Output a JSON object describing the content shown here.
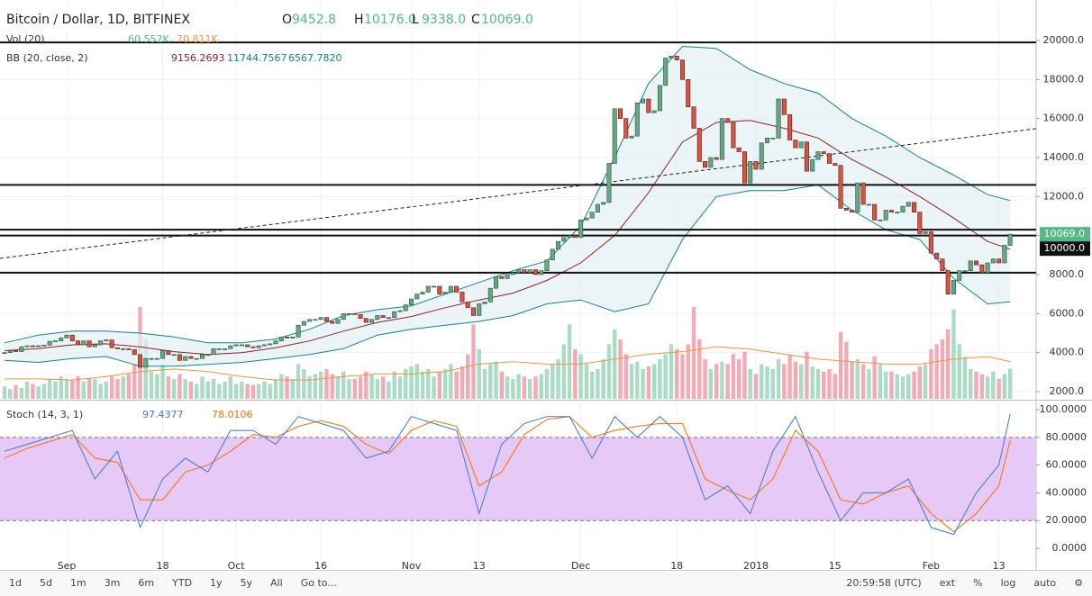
{
  "chart_data": {
    "type": "candlestick",
    "title": "Bitcoin / Dollar, 1D, BITFINEX",
    "ohlc": [
      [
        "O",
        "9452.8"
      ],
      [
        "H",
        "10176.0"
      ],
      [
        "L",
        "9338.0"
      ],
      [
        "C",
        "10069.0"
      ]
    ],
    "volume_legend": {
      "name": "Vol (20)",
      "values": [
        "60.552K",
        "70.811K"
      ]
    },
    "bands_legend": {
      "name": "BB (20, close, 2)",
      "values": [
        "9156.2693",
        "11744.7567",
        "6567.7820"
      ]
    },
    "colors": {
      "up": "#6ba583",
      "down": "#d75442",
      "volume_up": "#a9dcc6",
      "volume_down": "#f4aab4",
      "basis": "#872323",
      "band": "#138484",
      "band_fill": "#e3f0f3",
      "volume_ma": "#f0953d",
      "level": "#111111",
      "trend": "#222222"
    },
    "close": [
      4000,
      4100,
      4050,
      4300,
      4350,
      4330,
      4350,
      4380,
      4580,
      4600,
      4750,
      4900,
      4600,
      4400,
      4600,
      4300,
      4400,
      4600,
      4650,
      4250,
      4200,
      4200,
      4150,
      3900,
      3250,
      3700,
      3700,
      3700,
      4100,
      3900,
      3900,
      3600,
      3800,
      3700,
      3700,
      3900,
      3900,
      4200,
      4200,
      4200,
      4350,
      4400,
      4400,
      4300,
      4250,
      4350,
      4400,
      4450,
      4600,
      4800,
      4750,
      4800,
      5400,
      5600,
      5700,
      5700,
      5800,
      5600,
      5500,
      5700,
      6000,
      6000,
      5950,
      5750,
      5550,
      5700,
      5900,
      5800,
      5800,
      6100,
      6150,
      6450,
      6750,
      7000,
      7100,
      7400,
      7400,
      7000,
      7100,
      7400,
      7100,
      6600,
      6300,
      5900,
      6500,
      6600,
      7300,
      7900,
      7800,
      8000,
      8100,
      8250,
      8100,
      8250,
      8000,
      8200,
      8750,
      9300,
      9700,
      9900,
      10000,
      9900,
      10800,
      10900,
      11200,
      11600,
      11700,
      13700,
      16500,
      16000,
      15000,
      15100,
      16800,
      17000,
      16300,
      16400,
      17700,
      19100,
      19200,
      19000,
      18000,
      16600,
      15500,
      13800,
      13500,
      14000,
      13900,
      16000,
      15800,
      14500,
      14300,
      12700,
      13800,
      13400,
      14750,
      15000,
      15000,
      17000,
      16200,
      14900,
      14500,
      14800,
      13300,
      13900,
      14300,
      14200,
      13700,
      13600,
      11400,
      11300,
      11200,
      12700,
      11600,
      11600,
      10800,
      10800,
      11300,
      11200,
      11200,
      11500,
      11700,
      11200,
      10100,
      10200,
      9100,
      8800,
      8200,
      7000,
      7700,
      8200,
      8200,
      8700,
      8500,
      8100,
      8600,
      8800,
      8600,
      9500,
      10069
    ],
    "volume": [
      25,
      20,
      28,
      22,
      35,
      30,
      25,
      30,
      40,
      35,
      45,
      40,
      38,
      45,
      35,
      42,
      40,
      30,
      35,
      45,
      40,
      45,
      50,
      70,
      185,
      120,
      55,
      50,
      70,
      45,
      40,
      50,
      40,
      35,
      30,
      45,
      35,
      40,
      30,
      35,
      45,
      30,
      35,
      30,
      28,
      30,
      35,
      30,
      40,
      50,
      45,
      40,
      70,
      60,
      45,
      50,
      55,
      60,
      50,
      45,
      55,
      40,
      40,
      45,
      55,
      50,
      40,
      45,
      35,
      55,
      45,
      60,
      65,
      70,
      55,
      60,
      45,
      55,
      60,
      70,
      55,
      65,
      90,
      150,
      100,
      60,
      70,
      75,
      55,
      45,
      40,
      50,
      45,
      40,
      45,
      50,
      60,
      70,
      80,
      110,
      150,
      100,
      90,
      70,
      55,
      60,
      80,
      110,
      140,
      120,
      90,
      70,
      75,
      60,
      65,
      70,
      80,
      90,
      110,
      100,
      90,
      110,
      185,
      120,
      80,
      60,
      70,
      75,
      70,
      90,
      80,
      95,
      60,
      50,
      70,
      65,
      60,
      80,
      70,
      90,
      75,
      70,
      95,
      65,
      60,
      55,
      60,
      50,
      135,
      115,
      75,
      80,
      70,
      60,
      85,
      70,
      55,
      55,
      50,
      45,
      50,
      55,
      65,
      70,
      100,
      110,
      120,
      140,
      180,
      110,
      85,
      60,
      55,
      50,
      45,
      55,
      40,
      50,
      60.552
    ],
    "volume_ylim": [
      0,
      800
    ],
    "bands": {
      "x": [
        0,
        6,
        12,
        18,
        24,
        30,
        36,
        42,
        48,
        54,
        60,
        66,
        72,
        78,
        84,
        90,
        96,
        102,
        108,
        114,
        120,
        126,
        132,
        138,
        144,
        150,
        156,
        162,
        168,
        174,
        178
      ],
      "basis": [
        4100,
        4200,
        4400,
        4450,
        4300,
        4050,
        3900,
        4000,
        4250,
        4600,
        5100,
        5550,
        5850,
        6300,
        6700,
        7050,
        7700,
        8600,
        10000,
        12200,
        14800,
        15800,
        15900,
        15500,
        15000,
        13900,
        13000,
        12000,
        10900,
        9700,
        9300
      ],
      "upper": [
        4500,
        4900,
        5100,
        5100,
        5000,
        4800,
        4500,
        4500,
        4700,
        5200,
        5900,
        6200,
        6400,
        7000,
        7600,
        8200,
        8700,
        10500,
        14000,
        17800,
        19700,
        19600,
        18500,
        17800,
        17300,
        16000,
        15100,
        14000,
        13100,
        12100,
        11800
      ],
      "lower": [
        3600,
        3500,
        3700,
        3800,
        3300,
        3300,
        3400,
        3500,
        3700,
        3900,
        4200,
        4900,
        5200,
        5400,
        5600,
        5900,
        6500,
        6700,
        6100,
        6500,
        9800,
        12000,
        12300,
        12300,
        12600,
        11300,
        10300,
        9800,
        7800,
        6500,
        6600
      ]
    },
    "volume_ma": [
      40,
      40,
      38,
      45,
      55,
      60,
      55,
      45,
      38,
      38,
      45,
      50,
      50,
      55,
      70,
      75,
      70,
      70,
      80,
      90,
      95,
      105,
      100,
      90,
      80,
      75,
      70,
      70,
      80,
      85,
      75
    ],
    "levels": [
      19900,
      12600,
      10300,
      10000,
      8100
    ],
    "trendline": {
      "x": [
        -0.8,
        182.6
      ],
      "y": [
        8830,
        15480
      ]
    },
    "price_labels": [
      {
        "value": 10069,
        "label": "10069.0"
      },
      {
        "value": 10000,
        "label": "10000.0"
      }
    ],
    "xlim": [
      -0.8,
      182.6
    ],
    "xticks": [
      {
        "value": 11,
        "label": "Sep"
      },
      {
        "value": 28,
        "label": "18"
      },
      {
        "value": 41,
        "label": "Oct"
      },
      {
        "value": 56,
        "label": "16"
      },
      {
        "value": 72,
        "label": "Nov"
      },
      {
        "value": 84,
        "label": "13"
      },
      {
        "value": 102,
        "label": "Dec"
      },
      {
        "value": 119,
        "label": "18"
      },
      {
        "value": 133,
        "label": "2018"
      },
      {
        "value": 147,
        "label": "15"
      },
      {
        "value": 164,
        "label": "Feb"
      },
      {
        "value": 176,
        "label": "13"
      }
    ],
    "ylim": [
      1630,
      21985
    ],
    "yticks": [
      {
        "value": 2000,
        "label": "2000.0"
      },
      {
        "value": 4000,
        "label": "4000.0"
      },
      {
        "value": 6000,
        "label": "6000.0"
      },
      {
        "value": 8000,
        "label": "8000.0"
      },
      {
        "value": 10000,
        "label": "10000.0"
      },
      {
        "value": 12000,
        "label": "12000.0"
      },
      {
        "value": 14000,
        "label": "14000.0"
      },
      {
        "value": 16000,
        "label": "16000.0"
      },
      {
        "value": 18000,
        "label": "18000.0"
      },
      {
        "value": 20000,
        "label": "20000.0"
      }
    ],
    "grid": true,
    "stoch": {
      "name": "Stoch (14, 3, 1)",
      "value_labels": [
        "97.4377",
        "78.0106"
      ],
      "k_color": "#3c78d8",
      "d_color": "#ff6d00",
      "band_color": "#e6c9f7",
      "x": [
        0,
        4,
        8,
        12,
        16,
        20,
        24,
        28,
        32,
        36,
        40,
        44,
        48,
        52,
        56,
        60,
        64,
        68,
        72,
        76,
        80,
        84,
        88,
        92,
        96,
        100,
        104,
        108,
        112,
        116,
        120,
        124,
        128,
        132,
        136,
        140,
        144,
        148,
        152,
        156,
        160,
        164,
        168,
        172,
        176,
        178
      ],
      "k": [
        70,
        75,
        80,
        85,
        50,
        70,
        15,
        50,
        65,
        55,
        85,
        85,
        75,
        95,
        90,
        85,
        65,
        70,
        95,
        90,
        85,
        25,
        75,
        90,
        95,
        95,
        65,
        95,
        80,
        95,
        80,
        35,
        45,
        25,
        70,
        95,
        55,
        20,
        40,
        40,
        50,
        15,
        10,
        40,
        60,
        97
      ],
      "d": [
        65,
        72,
        77,
        82,
        65,
        62,
        35,
        35,
        55,
        60,
        70,
        82,
        80,
        88,
        92,
        88,
        75,
        68,
        85,
        92,
        88,
        45,
        55,
        82,
        93,
        95,
        80,
        85,
        88,
        90,
        90,
        50,
        42,
        35,
        50,
        85,
        70,
        35,
        32,
        40,
        45,
        25,
        12,
        25,
        45,
        78
      ],
      "band": [
        20,
        80
      ],
      "ylim": [
        -14.9,
        105.2
      ],
      "yticks": [
        {
          "value": 0,
          "label": "0.0000"
        },
        {
          "value": 20,
          "label": "20.0000"
        },
        {
          "value": 40,
          "label": "40.0000"
        },
        {
          "value": 60,
          "label": "60.0000"
        },
        {
          "value": 80,
          "label": "80.0000"
        },
        {
          "value": 100,
          "label": "100.0000"
        }
      ]
    }
  },
  "toolbar": {
    "left": [
      "1d",
      "5d",
      "1m",
      "3m",
      "6m",
      "YTD",
      "1y",
      "5y",
      "All",
      "Go to..."
    ],
    "right": [
      "20:59:58 (UTC)",
      "ext",
      "%",
      "log",
      "auto"
    ]
  }
}
